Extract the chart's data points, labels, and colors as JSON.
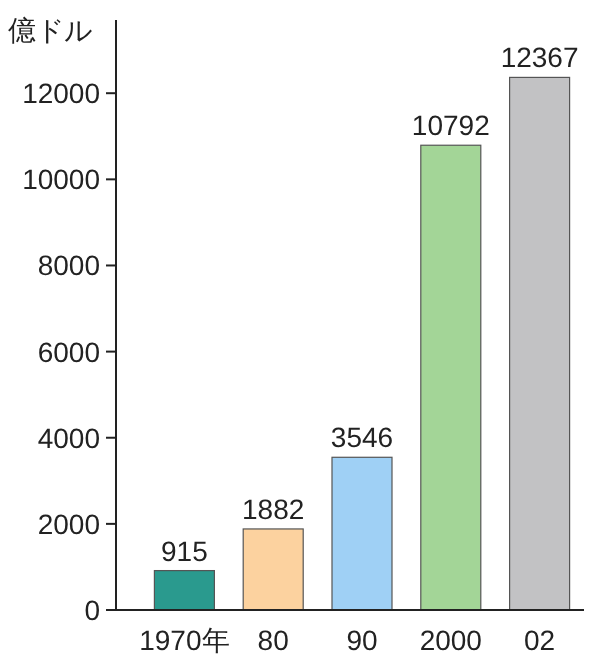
{
  "chart_data": {
    "type": "bar",
    "ylabel": "億ドル",
    "categories": [
      "1970年",
      "80",
      "90",
      "2000",
      "02"
    ],
    "values": [
      915,
      1882,
      3546,
      10792,
      12367
    ],
    "colors": [
      "#2a9a8e",
      "#fcd29f",
      "#9fd0f5",
      "#a3d597",
      "#c2c2c4"
    ],
    "ylim": [
      0,
      13700
    ],
    "yticks": [
      0,
      2000,
      4000,
      6000,
      8000,
      10000,
      12000
    ],
    "data_labels": true
  }
}
